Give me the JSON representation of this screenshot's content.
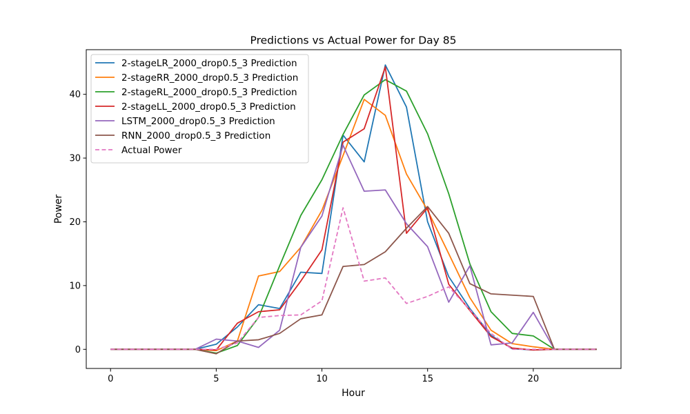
{
  "chart_data": {
    "type": "line",
    "title": "Predictions vs Actual Power for Day 85",
    "xlabel": "Hour",
    "ylabel": "Power",
    "xlim": [
      -1.15,
      24.15
    ],
    "ylim": [
      -3.0,
      47.0
    ],
    "xticks": [
      0,
      5,
      10,
      15,
      20
    ],
    "yticks": [
      0,
      10,
      20,
      30,
      40
    ],
    "grid": false,
    "legend_position": "top-left",
    "x": [
      0,
      1,
      2,
      3,
      4,
      5,
      6,
      7,
      8,
      9,
      10,
      11,
      12,
      13,
      14,
      15,
      16,
      17,
      18,
      19,
      20,
      21,
      22,
      23
    ],
    "series": [
      {
        "name": "2-stageLR_2000_drop0.5_3 Prediction",
        "color": "#1f77b4",
        "dashed": false,
        "values": [
          0,
          0,
          0,
          0,
          0,
          0.8,
          3.5,
          7.0,
          6.4,
          12.1,
          11.9,
          33.6,
          29.4,
          44.6,
          38.0,
          20.0,
          11.4,
          6.4,
          2.2,
          0.1,
          -0.1,
          0,
          0,
          0
        ]
      },
      {
        "name": "2-stageRR_2000_drop0.5_3 Prediction",
        "color": "#ff7f0e",
        "dashed": false,
        "values": [
          0,
          0,
          0,
          0,
          0,
          -0.2,
          1.3,
          11.5,
          12.2,
          16.0,
          21.8,
          30.4,
          39.2,
          36.7,
          27.5,
          21.8,
          15.0,
          8.1,
          3.0,
          0.9,
          0.4,
          0,
          0,
          0
        ]
      },
      {
        "name": "2-stageRL_2000_drop0.5_3 Prediction",
        "color": "#2ca02c",
        "dashed": false,
        "values": [
          0,
          0,
          0,
          0,
          0,
          -0.6,
          0.6,
          5.0,
          13.1,
          21.0,
          26.6,
          33.7,
          39.9,
          42.3,
          40.5,
          33.8,
          24.4,
          13.4,
          5.9,
          2.5,
          2.1,
          0,
          0,
          0
        ]
      },
      {
        "name": "2-stageLL_2000_drop0.5_3 Prediction",
        "color": "#d62728",
        "dashed": false,
        "values": [
          0,
          0,
          0,
          0,
          0,
          -0.1,
          4.1,
          5.9,
          6.2,
          10.7,
          15.6,
          32.5,
          34.6,
          44.3,
          18.2,
          22.2,
          10.2,
          6.1,
          2.0,
          0.2,
          -0.1,
          0,
          0,
          0
        ]
      },
      {
        "name": "LSTM_2000_drop0.5_3 Prediction",
        "color": "#9467bd",
        "dashed": false,
        "values": [
          0,
          0,
          0,
          0,
          0,
          1.6,
          1.3,
          0.3,
          3.0,
          16.0,
          20.9,
          32.0,
          24.8,
          25.0,
          19.7,
          16.1,
          7.4,
          13.1,
          0.7,
          1.0,
          5.8,
          0,
          0,
          0
        ]
      },
      {
        "name": "RNN_2000_drop0.5_3 Prediction",
        "color": "#8c564b",
        "dashed": false,
        "values": [
          0,
          0,
          0,
          0,
          0,
          -0.7,
          1.3,
          1.5,
          2.5,
          4.8,
          5.4,
          13.0,
          13.3,
          15.3,
          19.0,
          22.4,
          18.2,
          10.3,
          8.7,
          8.5,
          8.3,
          0,
          0,
          0
        ]
      },
      {
        "name": "Actual Power",
        "color": "#e377c2",
        "dashed": true,
        "values": [
          0,
          0,
          0,
          0,
          0,
          0,
          1.0,
          5.0,
          5.3,
          5.4,
          7.6,
          22.2,
          10.7,
          11.2,
          7.2,
          8.3,
          9.8,
          6.2,
          2.5,
          0,
          0,
          0,
          0,
          0
        ]
      }
    ]
  }
}
